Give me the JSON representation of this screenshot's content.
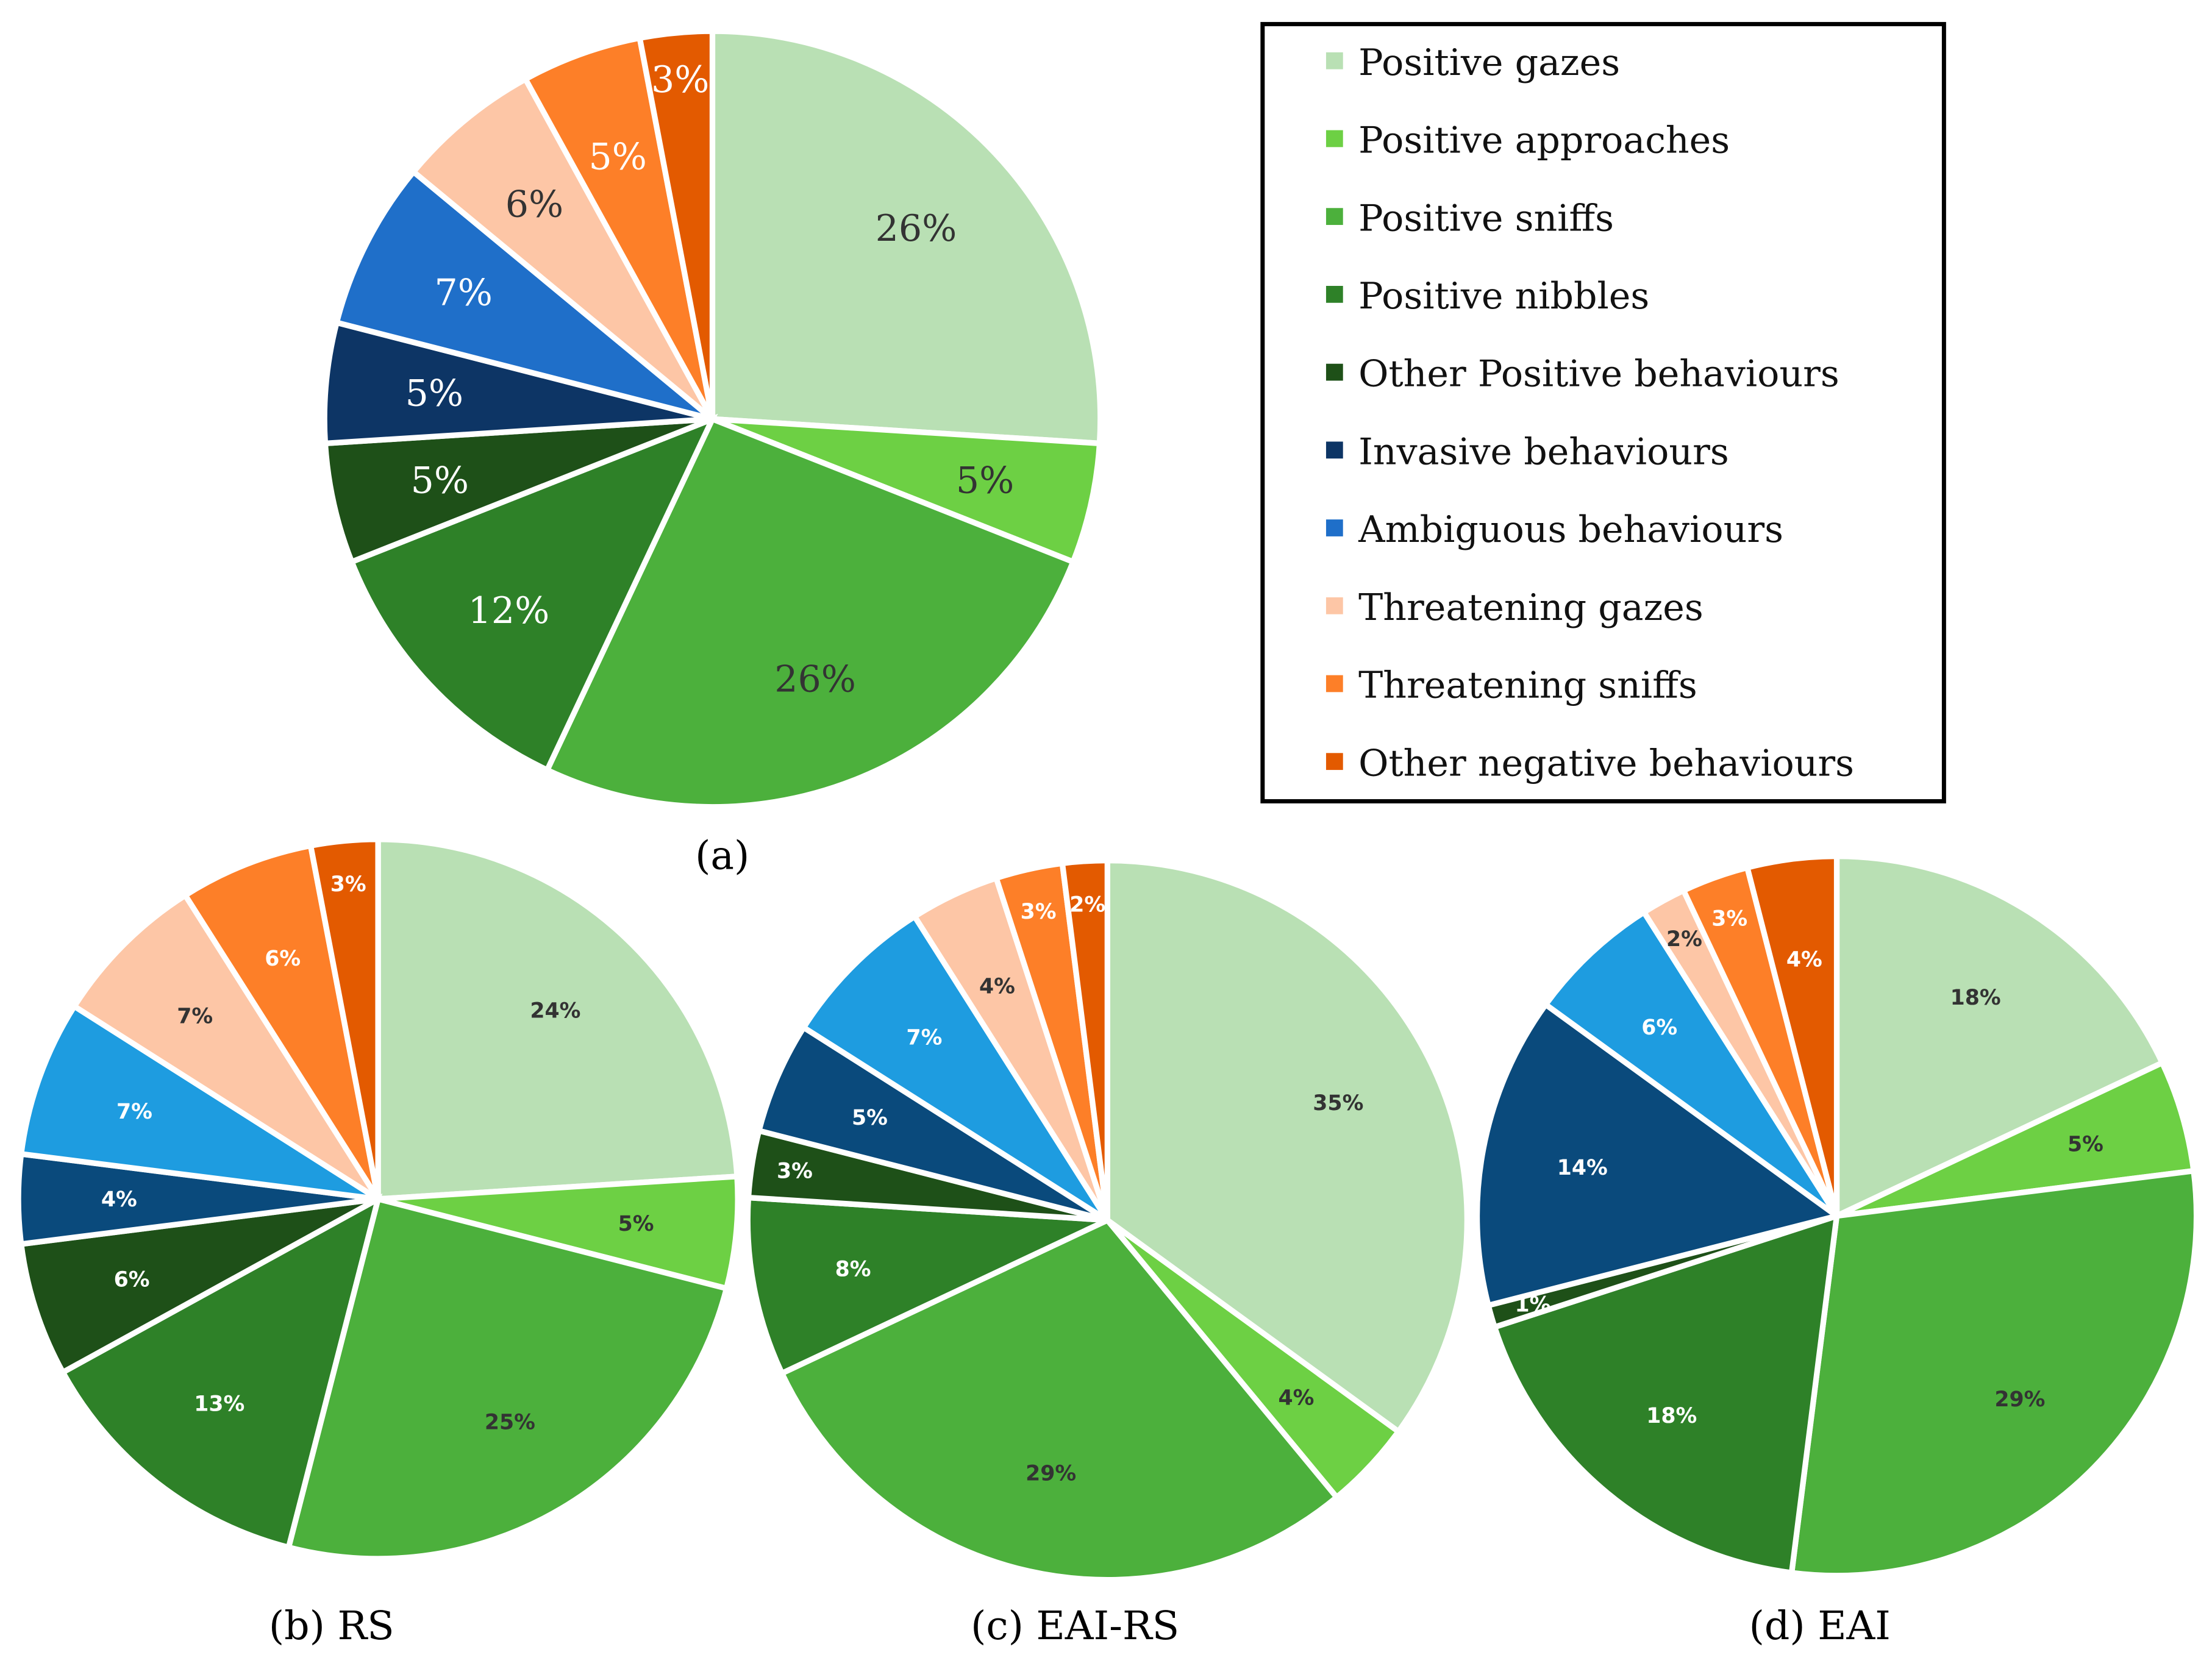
{
  "legend": {
    "entries": [
      "Positive gazes",
      "Positive approaches",
      "Positive sniffs",
      "Positive nibbles",
      "Other Positive behaviours",
      "Invasive behaviours",
      "Ambiguous behaviours",
      "Threatening gazes",
      "Threatening sniffs",
      "Other negative behaviours"
    ],
    "colors": [
      "#b9e0b4",
      "#6dd044",
      "#4cb03c",
      "#2e8128",
      "#1e5018",
      "#0d3565",
      "#1f6fc9",
      "#fdc6a6",
      "#fd7f28",
      "#e35a00"
    ]
  },
  "chart_data": [
    {
      "type": "pie",
      "title": "(a)",
      "categories": [
        "Positive gazes",
        "Positive approaches",
        "Positive sniffs",
        "Positive nibbles",
        "Other Positive behaviours",
        "Invasive behaviours",
        "Ambiguous behaviours",
        "Threatening gazes",
        "Threatening sniffs",
        "Other negative behaviours"
      ],
      "values": [
        26,
        5,
        26,
        12,
        5,
        5,
        7,
        6,
        5,
        3
      ],
      "labels": [
        "26%",
        "5%",
        "26%",
        "12%",
        "5%",
        "5%",
        "7%",
        "6%",
        "5%",
        "3%"
      ],
      "colors": [
        "#b9e0b4",
        "#6dd044",
        "#4cb03c",
        "#2e8128",
        "#1e5018",
        "#0d3565",
        "#1f6fc9",
        "#fdc6a6",
        "#fd7f28",
        "#e35a00"
      ]
    },
    {
      "type": "pie",
      "title": "(b) RS",
      "categories": [
        "Positive gazes",
        "Positive approaches",
        "Positive sniffs",
        "Positive nibbles",
        "Other Positive behaviours",
        "Invasive behaviours",
        "Ambiguous behaviours",
        "Threatening gazes",
        "Threatening sniffs",
        "Other negative behaviours"
      ],
      "values": [
        24,
        5,
        25,
        13,
        6,
        4,
        7,
        7,
        6,
        3
      ],
      "labels": [
        "24%",
        "5%",
        "25%",
        "13%",
        "6%",
        "4%",
        "7%",
        "7%",
        "6%",
        "3%"
      ],
      "colors": [
        "#b9e0b4",
        "#6dd044",
        "#4cb03c",
        "#2e8128",
        "#1e5018",
        "#0a4a7c",
        "#1e9ce0",
        "#fdc6a6",
        "#fd7f28",
        "#e35a00"
      ]
    },
    {
      "type": "pie",
      "title": "(c) EAI-RS",
      "categories": [
        "Positive gazes",
        "Positive approaches",
        "Positive sniffs",
        "Positive nibbles",
        "Other Positive behaviours",
        "Invasive behaviours",
        "Ambiguous behaviours",
        "Threatening gazes",
        "Threatening sniffs",
        "Other negative behaviours"
      ],
      "values": [
        35,
        4,
        29,
        8,
        3,
        5,
        7,
        4,
        3,
        2
      ],
      "labels": [
        "35%",
        "4%",
        "29%",
        "8%",
        "3%",
        "5%",
        "7%",
        "4%",
        "3%",
        "2%"
      ],
      "colors": [
        "#b9e0b4",
        "#6dd044",
        "#4cb03c",
        "#2e8128",
        "#1e5018",
        "#0a4a7c",
        "#1e9ce0",
        "#fdc6a6",
        "#fd7f28",
        "#e35a00"
      ]
    },
    {
      "type": "pie",
      "title": "(d) EAI",
      "categories": [
        "Positive gazes",
        "Positive approaches",
        "Positive sniffs",
        "Positive nibbles",
        "Other Positive behaviours",
        "Invasive behaviours",
        "Ambiguous behaviours",
        "Threatening gazes",
        "Threatening sniffs",
        "Other negative behaviours"
      ],
      "values": [
        18,
        5,
        29,
        18,
        1,
        14,
        6,
        2,
        3,
        4
      ],
      "labels": [
        "18%",
        "5%",
        "29%",
        "18%",
        "1%",
        "14%",
        "6%",
        "2%",
        "3%",
        "4%"
      ],
      "colors": [
        "#b9e0b4",
        "#6dd044",
        "#4cb03c",
        "#2e8128",
        "#1e5018",
        "#0a4a7c",
        "#1e9ce0",
        "#fdc6a6",
        "#fd7f28",
        "#e35a00"
      ]
    }
  ]
}
